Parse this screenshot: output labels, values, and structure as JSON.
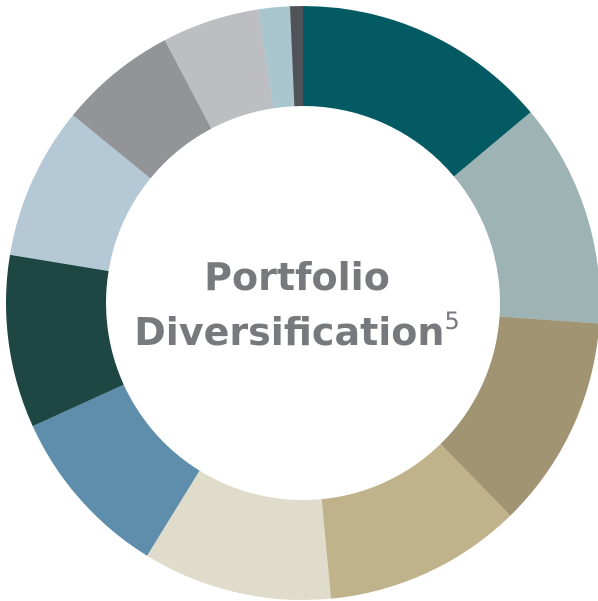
{
  "chart_data": {
    "type": "donut",
    "title": [
      "Portfolio",
      "Diversification"
    ],
    "title_superscript": "5",
    "categories": [
      null,
      null,
      null,
      null,
      null,
      null,
      null,
      null,
      null,
      null,
      null,
      null
    ],
    "values": [
      13.9,
      12.2,
      11.6,
      10.8,
      10.3,
      9.4,
      9.4,
      8.3,
      6.4,
      5.3,
      1.7,
      0.7
    ],
    "colors": [
      "#045a63",
      "#9db3b4",
      "#a09472",
      "#c0b38c",
      "#e0dccb",
      "#5f8dac",
      "#1e4642",
      "#b4c8d6",
      "#929497",
      "#bcbec1",
      "#a9c5cd",
      "#4f5358"
    ]
  }
}
